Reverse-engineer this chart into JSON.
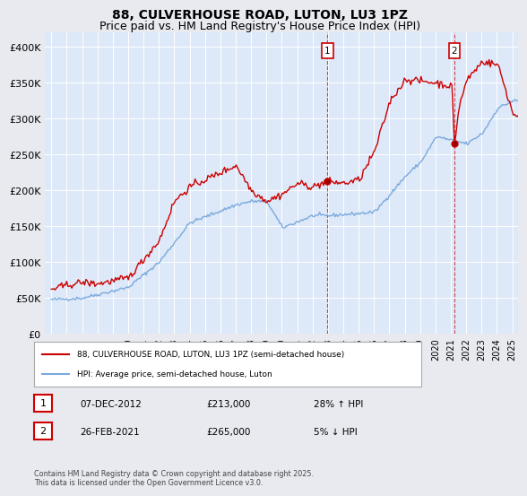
{
  "title": "88, CULVERHOUSE ROAD, LUTON, LU3 1PZ",
  "subtitle": "Price paid vs. HM Land Registry's House Price Index (HPI)",
  "ylim": [
    0,
    420000
  ],
  "yticks": [
    0,
    50000,
    100000,
    150000,
    200000,
    250000,
    300000,
    350000,
    400000
  ],
  "ytick_labels": [
    "£0",
    "£50K",
    "£100K",
    "£150K",
    "£200K",
    "£250K",
    "£300K",
    "£350K",
    "£400K"
  ],
  "bg_color": "#e8eaf0",
  "plot_bg": "#dde8f8",
  "red_color": "#cc0000",
  "blue_color": "#7aaadd",
  "legend_label_red": "88, CULVERHOUSE ROAD, LUTON, LU3 1PZ (semi-detached house)",
  "legend_label_blue": "HPI: Average price, semi-detached house, Luton",
  "annotation1": [
    "1",
    "07-DEC-2012",
    "£213,000",
    "28% ↑ HPI"
  ],
  "annotation2": [
    "2",
    "26-FEB-2021",
    "£265,000",
    "5% ↓ HPI"
  ],
  "footer": "Contains HM Land Registry data © Crown copyright and database right 2025.\nThis data is licensed under the Open Government Licence v3.0.",
  "title_fontsize": 10,
  "subtitle_fontsize": 9
}
